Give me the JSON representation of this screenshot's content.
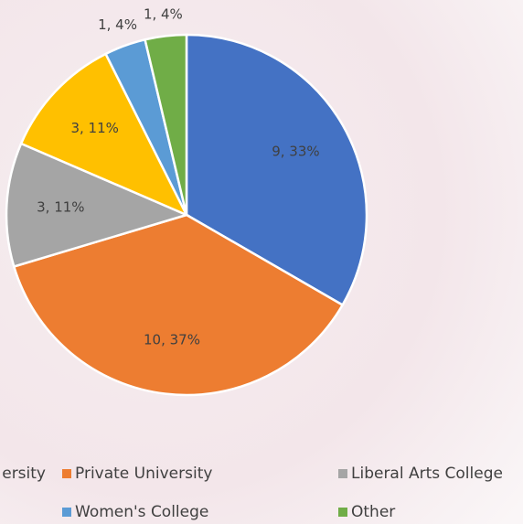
{
  "chart_data": {
    "type": "pie",
    "categories": [
      "ersity",
      "Private University",
      "Liberal Arts College",
      null,
      "Women's College",
      "Other"
    ],
    "values": [
      9,
      10,
      3,
      3,
      1,
      1
    ],
    "value_labels": [
      "9, 33%",
      "10, 37%",
      "3, 11%",
      "3, 11%",
      "1, 4%",
      "1, 4%"
    ],
    "colors": [
      "#4472c4",
      "#ed7d31",
      "#a5a5a5",
      "#ffc000",
      "#5b9bd5",
      "#70ad47"
    ]
  }
}
